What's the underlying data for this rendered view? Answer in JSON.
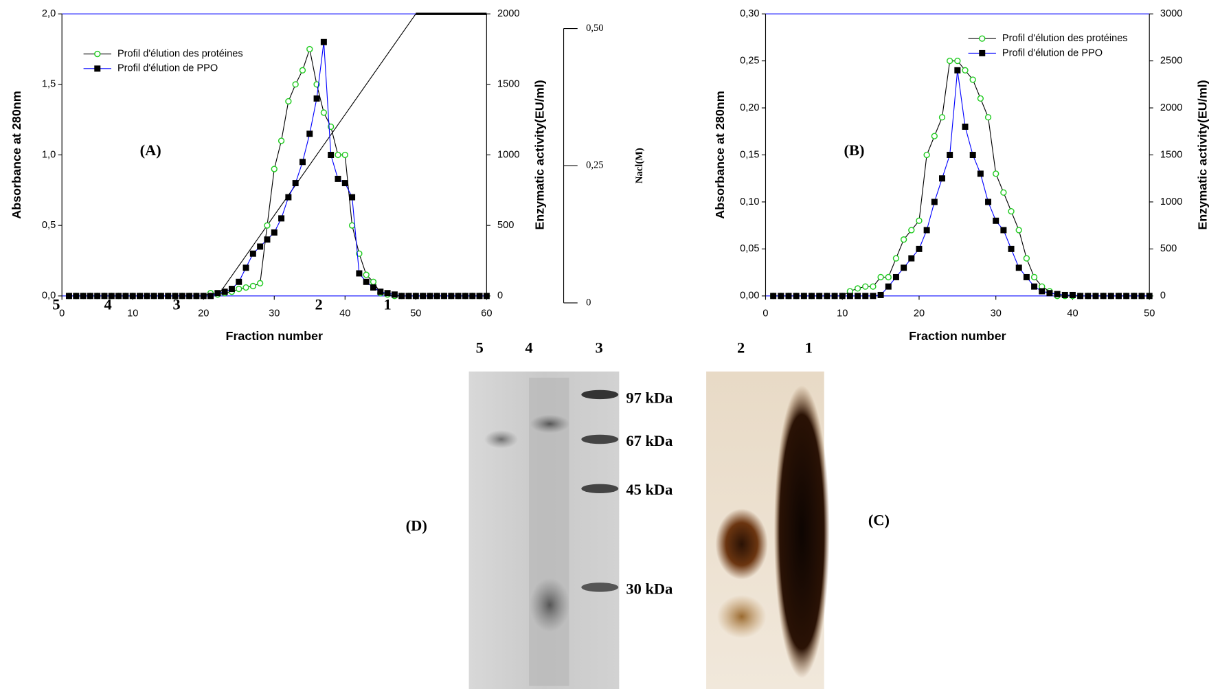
{
  "chart_data": [
    {
      "type": "line",
      "panel": "(A)",
      "xlabel": "Fraction number",
      "ylabel": "Absorbance at 280nm",
      "y2label": "Enzymatic activity(EU/ml)",
      "xlim": [
        0,
        60
      ],
      "xticks": [
        0,
        10,
        20,
        30,
        40,
        50,
        60
      ],
      "ylim": [
        0,
        2
      ],
      "yticks": [
        {
          "value": 0,
          "label": "0,0"
        },
        {
          "value": 0.5,
          "label": "0,5"
        },
        {
          "value": 1,
          "label": "1,0"
        },
        {
          "value": 1.5,
          "label": "1,5"
        },
        {
          "value": 2,
          "label": "2,0"
        }
      ],
      "y2lim": [
        0,
        2000
      ],
      "y2ticks": [
        0,
        500,
        1000,
        1500,
        2000
      ],
      "legend": "upper left",
      "x": [
        1,
        2,
        3,
        4,
        5,
        6,
        7,
        8,
        9,
        10,
        11,
        12,
        13,
        14,
        15,
        16,
        17,
        18,
        19,
        20,
        21,
        22,
        23,
        24,
        25,
        26,
        27,
        28,
        29,
        30,
        31,
        32,
        33,
        34,
        35,
        36,
        37,
        38,
        39,
        40,
        41,
        42,
        43,
        44,
        45,
        46,
        47,
        48,
        49,
        50,
        51,
        52,
        53,
        54,
        55,
        56,
        57,
        58,
        59,
        60
      ],
      "series": [
        {
          "name": "Profil d'élution des protéines",
          "color": "#000000",
          "marker": "circle",
          "marker_color": "#22cc22",
          "values": [
            0,
            0,
            0,
            0,
            0,
            0,
            0,
            0,
            0,
            0,
            0,
            0,
            0,
            0,
            0,
            0,
            0,
            0,
            0,
            0,
            0.02,
            0.01,
            0.02,
            0.03,
            0.05,
            0.06,
            0.07,
            0.09,
            0.5,
            0.9,
            1.1,
            1.38,
            1.5,
            1.6,
            1.75,
            1.5,
            1.3,
            1.2,
            1.0,
            1.0,
            0.5,
            0.3,
            0.15,
            0.1,
            0.02,
            0.01,
            0,
            0,
            0,
            0,
            0,
            0,
            0,
            0,
            0,
            0,
            0,
            0,
            0,
            0
          ]
        },
        {
          "name": "Profil d'élution de PPO",
          "color": "#0000ff",
          "marker": "square",
          "marker_color": "#000000",
          "axis": "y2",
          "values": [
            0,
            0,
            0,
            0,
            0,
            0,
            0,
            0,
            0,
            0,
            0,
            0,
            0,
            0,
            0,
            0,
            0,
            0,
            0,
            0,
            0,
            20,
            30,
            50,
            100,
            200,
            300,
            350,
            400,
            450,
            550,
            700,
            800,
            950,
            1150,
            1400,
            1800,
            1000,
            830,
            800,
            700,
            160,
            100,
            60,
            30,
            20,
            10,
            0,
            0,
            0,
            0,
            0,
            0,
            0,
            0,
            0,
            0,
            0,
            0,
            0
          ]
        }
      ],
      "y3label": "Nacl(M)",
      "y3lim": [
        0,
        0.5
      ],
      "y3ticks": [
        0,
        {
          "value": 0.25,
          "label": "0,25"
        },
        {
          "value": 0.5,
          "label": "0,50"
        }
      ],
      "gradient_x": [
        22,
        50,
        60
      ],
      "gradient_values": [
        0,
        0.5,
        0.5
      ],
      "fraction_markers": [
        {
          "label": "5",
          "x": -0.8
        },
        {
          "label": "4",
          "x": 6.5
        },
        {
          "label": "3",
          "x": 16.2
        },
        {
          "label": "2",
          "x": 36.3
        },
        {
          "label": "1",
          "x": 46
        }
      ]
    },
    {
      "type": "line",
      "panel": "(B)",
      "xlabel": "Fraction number",
      "ylabel": "Absorbance at 280nm",
      "y2label": "Enzymatic activity(EU/ml)",
      "xlim": [
        0,
        50
      ],
      "xticks": [
        0,
        10,
        20,
        30,
        40,
        50
      ],
      "ylim": [
        0,
        0.3
      ],
      "yticks": [
        {
          "value": 0,
          "label": "0,00"
        },
        {
          "value": 0.05,
          "label": "0,05"
        },
        {
          "value": 0.1,
          "label": "0,10"
        },
        {
          "value": 0.15,
          "label": "0,15"
        },
        {
          "value": 0.2,
          "label": "0,20"
        },
        {
          "value": 0.25,
          "label": "0,25"
        },
        {
          "value": 0.3,
          "label": "0,30"
        }
      ],
      "y2lim": [
        0,
        3000
      ],
      "y2ticks": [
        0,
        500,
        1000,
        1500,
        2000,
        2500,
        3000
      ],
      "legend": "upper right",
      "x": [
        1,
        2,
        3,
        4,
        5,
        6,
        7,
        8,
        9,
        10,
        11,
        12,
        13,
        14,
        15,
        16,
        17,
        18,
        19,
        20,
        21,
        22,
        23,
        24,
        25,
        26,
        27,
        28,
        29,
        30,
        31,
        32,
        33,
        34,
        35,
        36,
        37,
        38,
        39,
        40,
        41,
        42,
        43,
        44,
        45,
        46,
        47,
        48,
        49,
        50
      ],
      "series": [
        {
          "name": "Profil d'élution des protéines",
          "color": "#000000",
          "marker": "circle",
          "marker_color": "#22cc22",
          "values": [
            0,
            0,
            0,
            0,
            0,
            0,
            0,
            0,
            0,
            0,
            0.005,
            0.008,
            0.01,
            0.01,
            0.02,
            0.02,
            0.04,
            0.06,
            0.07,
            0.08,
            0.15,
            0.17,
            0.19,
            0.25,
            0.25,
            0.24,
            0.23,
            0.21,
            0.19,
            0.13,
            0.11,
            0.09,
            0.07,
            0.04,
            0.02,
            0.01,
            0.005,
            0,
            0,
            0,
            0,
            0,
            0,
            0,
            0,
            0,
            0,
            0,
            0,
            0
          ]
        },
        {
          "name": "Profil d'élution de PPO",
          "color": "#0000ff",
          "marker": "square",
          "marker_color": "#000000",
          "axis": "y2",
          "values": [
            0,
            0,
            0,
            0,
            0,
            0,
            0,
            0,
            0,
            0,
            0,
            0,
            0,
            0,
            10,
            100,
            200,
            300,
            400,
            500,
            700,
            1000,
            1250,
            1500,
            2400,
            1800,
            1500,
            1300,
            1000,
            800,
            700,
            500,
            300,
            200,
            100,
            50,
            30,
            20,
            10,
            10,
            0,
            0,
            0,
            0,
            0,
            0,
            0,
            0,
            0,
            0
          ]
        }
      ]
    }
  ],
  "gels": {
    "lanes": [
      "5",
      "4",
      "3",
      "2",
      "1"
    ],
    "markers": [
      "97 kDa",
      "67 kDa",
      "45 kDa",
      "30 kDa"
    ],
    "panels": [
      "(D)",
      "(C)"
    ]
  }
}
